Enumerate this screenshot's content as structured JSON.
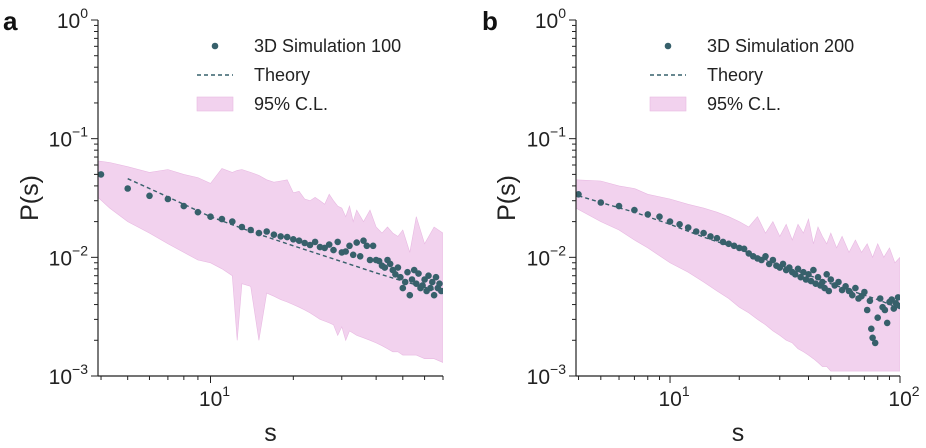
{
  "colors": {
    "points": "#37606b",
    "theory": "#37606b",
    "band": "#f2d2ee",
    "band_edge": "#e8b9e2",
    "axis": "#222222"
  },
  "chart_data": [
    {
      "type": "scatter",
      "panel_label": "a",
      "xlabel": "s",
      "ylabel": "P(s)",
      "xscale": "log",
      "yscale": "log",
      "xlim": [
        3.9,
        70
      ],
      "ylim": [
        0.001,
        1
      ],
      "x_ticks": [
        {
          "value": 10,
          "base": "10",
          "exp": "1"
        }
      ],
      "y_ticks": [
        {
          "value": 1,
          "base": "10",
          "exp": "0"
        },
        {
          "value": 0.1,
          "base": "10",
          "exp": "−1"
        },
        {
          "value": 0.01,
          "base": "10",
          "exp": "−2"
        },
        {
          "value": 0.001,
          "base": "10",
          "exp": "−3"
        }
      ],
      "legend": {
        "position": "top-right",
        "entries": [
          {
            "kind": "marker",
            "label": "3D Simulation 100"
          },
          {
            "kind": "line",
            "label": "Theory"
          },
          {
            "kind": "band",
            "label": "95% C.L."
          }
        ]
      },
      "series": [
        {
          "name": "3D Simulation 100",
          "kind": "points",
          "x": [
            4,
            5,
            6,
            7,
            8,
            9,
            10,
            11,
            12,
            13,
            14,
            15,
            16,
            17,
            18,
            19,
            20,
            21,
            22,
            23,
            24,
            25,
            26,
            27,
            28,
            29,
            30,
            31,
            32,
            33,
            34,
            35,
            36,
            37,
            38,
            39,
            40,
            41,
            42,
            43,
            44,
            45,
            46,
            47,
            48,
            49,
            50,
            51,
            52,
            53,
            54,
            55,
            56,
            57,
            58,
            59,
            60,
            61,
            62,
            63,
            64,
            65,
            66,
            67,
            68,
            69
          ],
          "y": [
            0.05,
            0.038,
            0.033,
            0.031,
            0.027,
            0.024,
            0.022,
            0.021,
            0.02,
            0.018,
            0.017,
            0.016,
            0.0165,
            0.0155,
            0.015,
            0.0148,
            0.0142,
            0.0138,
            0.0132,
            0.0127,
            0.0135,
            0.0122,
            0.012,
            0.0128,
            0.0115,
            0.0135,
            0.011,
            0.0112,
            0.0125,
            0.0105,
            0.0133,
            0.0102,
            0.0138,
            0.0125,
            0.0095,
            0.0125,
            0.0095,
            0.0093,
            0.0085,
            0.0082,
            0.0095,
            0.0088,
            0.0078,
            0.0072,
            0.0082,
            0.0068,
            0.0055,
            0.0062,
            0.0075,
            0.0048,
            0.0065,
            0.0078,
            0.006,
            0.0073,
            0.0055,
            0.0058,
            0.0065,
            0.0052,
            0.007,
            0.0055,
            0.0062,
            0.0048,
            0.0068,
            0.0055,
            0.006,
            0.0052
          ]
        },
        {
          "name": "Theory",
          "kind": "line",
          "x": [
            5,
            6,
            8,
            10,
            14,
            20,
            28,
            40,
            50,
            60,
            70
          ],
          "y": [
            0.046,
            0.038,
            0.028,
            0.022,
            0.0165,
            0.0125,
            0.0097,
            0.0074,
            0.0063,
            0.0056,
            0.0051
          ]
        },
        {
          "name": "95% C.L.",
          "kind": "band",
          "x": [
            3.9,
            4.3,
            5,
            6,
            7,
            8,
            9,
            10,
            11,
            12,
            12.5,
            13,
            14,
            15,
            16,
            17,
            18,
            19,
            20,
            21,
            22,
            23,
            24,
            25,
            26,
            27,
            28,
            29,
            30,
            31,
            32,
            33,
            34,
            36,
            38,
            40,
            42,
            44,
            46,
            48,
            50,
            53,
            56,
            60,
            65,
            70
          ],
          "upper": [
            0.065,
            0.063,
            0.058,
            0.052,
            0.055,
            0.05,
            0.047,
            0.042,
            0.056,
            0.052,
            0.054,
            0.055,
            0.052,
            0.049,
            0.045,
            0.043,
            0.044,
            0.045,
            0.035,
            0.036,
            0.031,
            0.03,
            0.032,
            0.03,
            0.028,
            0.034,
            0.03,
            0.027,
            0.026,
            0.022,
            0.027,
            0.02,
            0.025,
            0.02,
            0.025,
            0.018,
            0.016,
            0.018,
            0.016,
            0.015,
            0.017,
            0.011,
            0.022,
            0.013,
            0.018,
            0.016
          ],
          "lower": [
            0.032,
            0.026,
            0.02,
            0.016,
            0.013,
            0.011,
            0.0095,
            0.009,
            0.008,
            0.007,
            0.002,
            0.006,
            0.0057,
            0.002,
            0.005,
            0.0047,
            0.0044,
            0.0042,
            0.004,
            0.0038,
            0.0036,
            0.0034,
            0.0032,
            0.003,
            0.0029,
            0.0028,
            0.0027,
            0.0022,
            0.0026,
            0.002,
            0.0024,
            0.0023,
            0.0022,
            0.0021,
            0.002,
            0.0019,
            0.0018,
            0.0017,
            0.0016,
            0.0016,
            0.0015,
            0.0015,
            0.0015,
            0.0014,
            0.0014,
            0.0013
          ]
        }
      ]
    },
    {
      "type": "scatter",
      "panel_label": "b",
      "xlabel": "s",
      "ylabel": "P(s)",
      "xscale": "log",
      "yscale": "log",
      "xlim": [
        3.9,
        100
      ],
      "ylim": [
        0.001,
        1
      ],
      "x_ticks": [
        {
          "value": 10,
          "base": "10",
          "exp": "1"
        },
        {
          "value": 100,
          "base": "10",
          "exp": "2"
        }
      ],
      "y_ticks": [
        {
          "value": 1,
          "base": "10",
          "exp": "0"
        },
        {
          "value": 0.1,
          "base": "10",
          "exp": "−1"
        },
        {
          "value": 0.01,
          "base": "10",
          "exp": "−2"
        },
        {
          "value": 0.001,
          "base": "10",
          "exp": "−3"
        }
      ],
      "legend": {
        "position": "top-right",
        "entries": [
          {
            "kind": "marker",
            "label": "3D Simulation 200"
          },
          {
            "kind": "line",
            "label": "Theory"
          },
          {
            "kind": "band",
            "label": "95% C.L."
          }
        ]
      },
      "series": [
        {
          "name": "3D Simulation 200",
          "kind": "points",
          "x": [
            4,
            5,
            6,
            7,
            8,
            9,
            10,
            11,
            12,
            13,
            14,
            15,
            16,
            17,
            18,
            19,
            20,
            21,
            22,
            23,
            24,
            25,
            26,
            27,
            28,
            29,
            30,
            31,
            32,
            33,
            34,
            35,
            36,
            37,
            38,
            39,
            40,
            41,
            42,
            43,
            44,
            45,
            46,
            47,
            48,
            49,
            50,
            52,
            54,
            56,
            58,
            60,
            62,
            64,
            66,
            68,
            70,
            72,
            74,
            75,
            76,
            78,
            80,
            82,
            84,
            86,
            88,
            90,
            92,
            94,
            96,
            98,
            100
          ],
          "y": [
            0.034,
            0.029,
            0.027,
            0.025,
            0.023,
            0.022,
            0.02,
            0.019,
            0.0178,
            0.0165,
            0.016,
            0.015,
            0.0145,
            0.0135,
            0.013,
            0.0125,
            0.012,
            0.0118,
            0.0108,
            0.0102,
            0.0098,
            0.0095,
            0.0102,
            0.0088,
            0.0095,
            0.0085,
            0.0082,
            0.0088,
            0.0078,
            0.0082,
            0.0075,
            0.0072,
            0.008,
            0.0068,
            0.0075,
            0.0065,
            0.0072,
            0.0063,
            0.0078,
            0.006,
            0.0068,
            0.0058,
            0.0062,
            0.0055,
            0.0072,
            0.0052,
            0.0065,
            0.0058,
            0.0062,
            0.0053,
            0.0057,
            0.0052,
            0.0048,
            0.0055,
            0.0045,
            0.0047,
            0.0051,
            0.0036,
            0.0043,
            0.0025,
            0.0021,
            0.0019,
            0.0031,
            0.0045,
            0.0038,
            0.0036,
            0.0028,
            0.0042,
            0.0044,
            0.0037,
            0.0041,
            0.0046,
            0.0039
          ]
        },
        {
          "name": "Theory",
          "kind": "line",
          "x": [
            4,
            5,
            7,
            10,
            14,
            20,
            30,
            40,
            50,
            60,
            80,
            100
          ],
          "y": [
            0.033,
            0.029,
            0.024,
            0.019,
            0.0148,
            0.0117,
            0.0086,
            0.0071,
            0.006,
            0.0053,
            0.0044,
            0.0037
          ]
        },
        {
          "name": "95% C.L.",
          "kind": "band",
          "x": [
            3.9,
            5,
            6,
            7,
            8,
            10,
            12,
            14,
            16,
            18,
            20,
            22,
            24,
            26,
            28,
            30,
            32,
            34,
            36,
            38,
            40,
            42,
            44,
            46,
            48,
            50,
            53,
            56,
            60,
            64,
            68,
            72,
            76,
            80,
            85,
            90,
            95,
            100
          ],
          "upper": [
            0.045,
            0.044,
            0.04,
            0.038,
            0.034,
            0.031,
            0.028,
            0.026,
            0.024,
            0.022,
            0.02,
            0.018,
            0.022,
            0.016,
            0.02,
            0.015,
            0.019,
            0.014,
            0.019,
            0.016,
            0.021,
            0.013,
            0.018,
            0.015,
            0.013,
            0.016,
            0.012,
            0.015,
            0.011,
            0.014,
            0.011,
            0.013,
            0.01,
            0.013,
            0.01,
            0.012,
            0.009,
            0.01
          ],
          "lower": [
            0.026,
            0.02,
            0.017,
            0.014,
            0.012,
            0.009,
            0.0075,
            0.0062,
            0.0052,
            0.0045,
            0.0038,
            0.0034,
            0.003,
            0.0027,
            0.0024,
            0.0022,
            0.002,
            0.0019,
            0.0017,
            0.0016,
            0.0015,
            0.0014,
            0.0013,
            0.0012,
            0.0012,
            0.0011,
            0.0011,
            0.0011,
            0.0011,
            0.0011,
            0.0011,
            0.0011,
            0.0011,
            0.0011,
            0.0011,
            0.0011,
            0.0011,
            0.0011
          ]
        }
      ]
    }
  ]
}
